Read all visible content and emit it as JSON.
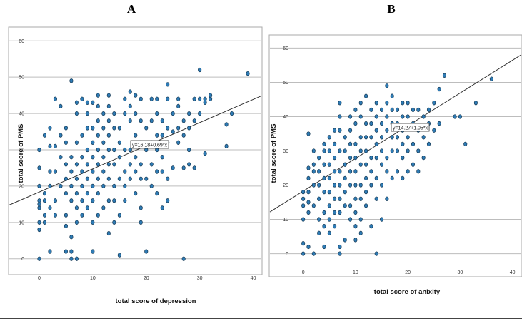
{
  "panels": [
    {
      "letter": "A"
    },
    {
      "letter": "B"
    }
  ],
  "chart_data": [
    {
      "type": "scatter",
      "title": "",
      "xlabel": "total score of depression",
      "ylabel": "total score of PMS",
      "xlim": [
        -2,
        41
      ],
      "ylim": [
        -3,
        63
      ],
      "xticks": [
        0,
        10,
        20,
        30,
        40
      ],
      "yticks": [
        0,
        10,
        20,
        30,
        40,
        50,
        60
      ],
      "grid": "horizontal",
      "fit_line": {
        "intercept": 16.18,
        "slope": 0.69,
        "label": "y=16.18+0.69*x"
      },
      "points": [
        [
          0,
          0
        ],
        [
          0,
          8
        ],
        [
          0,
          10
        ],
        [
          0,
          14
        ],
        [
          0,
          15
        ],
        [
          0,
          16
        ],
        [
          0,
          20
        ],
        [
          0,
          25
        ],
        [
          0,
          30
        ],
        [
          1,
          10
        ],
        [
          1,
          12
        ],
        [
          1,
          16
        ],
        [
          1,
          18
        ],
        [
          1,
          34
        ],
        [
          2,
          2
        ],
        [
          2,
          14
        ],
        [
          2,
          20
        ],
        [
          2,
          24
        ],
        [
          2,
          31
        ],
        [
          2,
          36
        ],
        [
          3,
          12
        ],
        [
          3,
          16
        ],
        [
          3,
          24
        ],
        [
          3,
          31
        ],
        [
          3,
          44
        ],
        [
          4,
          20
        ],
        [
          4,
          28
        ],
        [
          4,
          34
        ],
        [
          4,
          42
        ],
        [
          5,
          2
        ],
        [
          5,
          9
        ],
        [
          5,
          12
        ],
        [
          5,
          18
        ],
        [
          5,
          22
        ],
        [
          5,
          26
        ],
        [
          5,
          32
        ],
        [
          5,
          36
        ],
        [
          6,
          0
        ],
        [
          6,
          2
        ],
        [
          6,
          6
        ],
        [
          6,
          16
        ],
        [
          6,
          20
        ],
        [
          6,
          24
        ],
        [
          6,
          28
        ],
        [
          6,
          49
        ],
        [
          7,
          0
        ],
        [
          7,
          10
        ],
        [
          7,
          14
        ],
        [
          7,
          18
        ],
        [
          7,
          22
        ],
        [
          7,
          26
        ],
        [
          7,
          32
        ],
        [
          7,
          40
        ],
        [
          7,
          43
        ],
        [
          8,
          12
        ],
        [
          8,
          16
        ],
        [
          8,
          20
        ],
        [
          8,
          24
        ],
        [
          8,
          28
        ],
        [
          8,
          34
        ],
        [
          8,
          44
        ],
        [
          9,
          14
        ],
        [
          9,
          18
        ],
        [
          9,
          22
        ],
        [
          9,
          26
        ],
        [
          9,
          30
        ],
        [
          9,
          36
        ],
        [
          9,
          40
        ],
        [
          9,
          43
        ],
        [
          10,
          2
        ],
        [
          10,
          10
        ],
        [
          10,
          16
        ],
        [
          10,
          20
        ],
        [
          10,
          24
        ],
        [
          10,
          28
        ],
        [
          10,
          32
        ],
        [
          10,
          36
        ],
        [
          10,
          43
        ],
        [
          11,
          12
        ],
        [
          11,
          18
        ],
        [
          11,
          22
        ],
        [
          11,
          26
        ],
        [
          11,
          30
        ],
        [
          11,
          34
        ],
        [
          11,
          38
        ],
        [
          11,
          42
        ],
        [
          11,
          45
        ],
        [
          12,
          14
        ],
        [
          12,
          20
        ],
        [
          12,
          24
        ],
        [
          12,
          28
        ],
        [
          12,
          32
        ],
        [
          12,
          36
        ],
        [
          12,
          40
        ],
        [
          13,
          7
        ],
        [
          13,
          16
        ],
        [
          13,
          22
        ],
        [
          13,
          26
        ],
        [
          13,
          30
        ],
        [
          13,
          34
        ],
        [
          13,
          38
        ],
        [
          13,
          42
        ],
        [
          13,
          45
        ],
        [
          14,
          10
        ],
        [
          14,
          16
        ],
        [
          14,
          20
        ],
        [
          14,
          26
        ],
        [
          14,
          30
        ],
        [
          14,
          36
        ],
        [
          14,
          40
        ],
        [
          15,
          1
        ],
        [
          15,
          12
        ],
        [
          15,
          22
        ],
        [
          15,
          28
        ],
        [
          15,
          32
        ],
        [
          15,
          36
        ],
        [
          16,
          16
        ],
        [
          16,
          20
        ],
        [
          16,
          24
        ],
        [
          16,
          30
        ],
        [
          16,
          40
        ],
        [
          16,
          44
        ],
        [
          17,
          22
        ],
        [
          17,
          26
        ],
        [
          17,
          30
        ],
        [
          17,
          38
        ],
        [
          17,
          42
        ],
        [
          17,
          46
        ],
        [
          18,
          18
        ],
        [
          18,
          24
        ],
        [
          18,
          28
        ],
        [
          18,
          34
        ],
        [
          18,
          40
        ],
        [
          18,
          45
        ],
        [
          19,
          10
        ],
        [
          19,
          14
        ],
        [
          19,
          22
        ],
        [
          19,
          26
        ],
        [
          19,
          32
        ],
        [
          19,
          38
        ],
        [
          19,
          44
        ],
        [
          20,
          2
        ],
        [
          20,
          22
        ],
        [
          20,
          30
        ],
        [
          20,
          36
        ],
        [
          21,
          20
        ],
        [
          21,
          26
        ],
        [
          21,
          32
        ],
        [
          21,
          38
        ],
        [
          21,
          44
        ],
        [
          22,
          18
        ],
        [
          22,
          24
        ],
        [
          22,
          30
        ],
        [
          22,
          34
        ],
        [
          22,
          40
        ],
        [
          22,
          44
        ],
        [
          23,
          14
        ],
        [
          23,
          24
        ],
        [
          23,
          28
        ],
        [
          23,
          34
        ],
        [
          23,
          38
        ],
        [
          24,
          16
        ],
        [
          24,
          22
        ],
        [
          24,
          32
        ],
        [
          24,
          36
        ],
        [
          24,
          44
        ],
        [
          24,
          48
        ],
        [
          25,
          25
        ],
        [
          25,
          35
        ],
        [
          25,
          40
        ],
        [
          26,
          32
        ],
        [
          26,
          36
        ],
        [
          26,
          42
        ],
        [
          26,
          44
        ],
        [
          27,
          0
        ],
        [
          27,
          25
        ],
        [
          27,
          34
        ],
        [
          27,
          38
        ],
        [
          28,
          26
        ],
        [
          28,
          30
        ],
        [
          28,
          36
        ],
        [
          28,
          40
        ],
        [
          29,
          25
        ],
        [
          29,
          38
        ],
        [
          29,
          44
        ],
        [
          30,
          40
        ],
        [
          30,
          44
        ],
        [
          30,
          52
        ],
        [
          31,
          29
        ],
        [
          31,
          43
        ],
        [
          31,
          44
        ],
        [
          32,
          44
        ],
        [
          32,
          45
        ],
        [
          35,
          31
        ],
        [
          35,
          37
        ],
        [
          36,
          40
        ],
        [
          39,
          51
        ]
      ]
    },
    {
      "type": "scatter",
      "title": "",
      "xlabel": "total score of anixity",
      "ylabel": "total score of PMS",
      "xlim": [
        -2,
        41
      ],
      "ylim": [
        -3,
        63
      ],
      "xticks": [
        0,
        10,
        20,
        30,
        40
      ],
      "yticks": [
        0,
        10,
        20,
        30,
        40,
        50,
        60
      ],
      "grid": "horizontal",
      "fit_line": {
        "intercept": 14.27,
        "slope": 1.05,
        "label": "y=14.27+1.05*x"
      },
      "points": [
        [
          0,
          0
        ],
        [
          0,
          3
        ],
        [
          0,
          10
        ],
        [
          0,
          14
        ],
        [
          0,
          16
        ],
        [
          0,
          18
        ],
        [
          1,
          2
        ],
        [
          1,
          12
        ],
        [
          1,
          15
        ],
        [
          1,
          18
        ],
        [
          1,
          22
        ],
        [
          1,
          25
        ],
        [
          1,
          35
        ],
        [
          2,
          0
        ],
        [
          2,
          14
        ],
        [
          2,
          20
        ],
        [
          2,
          24
        ],
        [
          2,
          26
        ],
        [
          2,
          30
        ],
        [
          3,
          6
        ],
        [
          3,
          10
        ],
        [
          3,
          16
        ],
        [
          3,
          20
        ],
        [
          3,
          24
        ],
        [
          3,
          28
        ],
        [
          4,
          2
        ],
        [
          4,
          8
        ],
        [
          4,
          12
        ],
        [
          4,
          18
        ],
        [
          4,
          22
        ],
        [
          4,
          26
        ],
        [
          4,
          30
        ],
        [
          4,
          32
        ],
        [
          5,
          6
        ],
        [
          5,
          10
        ],
        [
          5,
          14
        ],
        [
          5,
          18
        ],
        [
          5,
          22
        ],
        [
          5,
          26
        ],
        [
          5,
          30
        ],
        [
          5,
          34
        ],
        [
          6,
          8
        ],
        [
          6,
          12
        ],
        [
          6,
          16
        ],
        [
          6,
          20
        ],
        [
          6,
          24
        ],
        [
          6,
          28
        ],
        [
          6,
          32
        ],
        [
          6,
          36
        ],
        [
          7,
          0
        ],
        [
          7,
          2
        ],
        [
          7,
          12
        ],
        [
          7,
          16
        ],
        [
          7,
          20
        ],
        [
          7,
          24
        ],
        [
          7,
          30
        ],
        [
          7,
          36
        ],
        [
          7,
          40
        ],
        [
          7,
          44
        ],
        [
          8,
          4
        ],
        [
          8,
          14
        ],
        [
          8,
          18
        ],
        [
          8,
          22
        ],
        [
          8,
          26
        ],
        [
          8,
          30
        ],
        [
          8,
          34
        ],
        [
          9,
          10
        ],
        [
          9,
          14
        ],
        [
          9,
          20
        ],
        [
          9,
          24
        ],
        [
          9,
          28
        ],
        [
          9,
          32
        ],
        [
          9,
          36
        ],
        [
          9,
          40
        ],
        [
          10,
          4
        ],
        [
          10,
          8
        ],
        [
          10,
          12
        ],
        [
          10,
          16
        ],
        [
          10,
          20
        ],
        [
          10,
          24
        ],
        [
          10,
          28
        ],
        [
          10,
          32
        ],
        [
          10,
          38
        ],
        [
          10,
          42
        ],
        [
          11,
          6
        ],
        [
          11,
          10
        ],
        [
          11,
          16
        ],
        [
          11,
          20
        ],
        [
          11,
          26
        ],
        [
          11,
          30
        ],
        [
          11,
          34
        ],
        [
          11,
          40
        ],
        [
          11,
          44
        ],
        [
          12,
          14
        ],
        [
          12,
          18
        ],
        [
          12,
          22
        ],
        [
          12,
          26
        ],
        [
          12,
          30
        ],
        [
          12,
          34
        ],
        [
          12,
          38
        ],
        [
          12,
          46
        ],
        [
          13,
          8
        ],
        [
          13,
          20
        ],
        [
          13,
          24
        ],
        [
          13,
          28
        ],
        [
          13,
          34
        ],
        [
          13,
          38
        ],
        [
          13,
          42
        ],
        [
          14,
          0
        ],
        [
          14,
          16
        ],
        [
          14,
          22
        ],
        [
          14,
          28
        ],
        [
          14,
          32
        ],
        [
          14,
          36
        ],
        [
          14,
          40
        ],
        [
          14,
          44
        ],
        [
          15,
          10
        ],
        [
          15,
          20
        ],
        [
          15,
          26
        ],
        [
          15,
          30
        ],
        [
          15,
          34
        ],
        [
          15,
          38
        ],
        [
          15,
          42
        ],
        [
          16,
          16
        ],
        [
          16,
          24
        ],
        [
          16,
          28
        ],
        [
          16,
          36
        ],
        [
          16,
          40
        ],
        [
          16,
          44
        ],
        [
          16,
          49
        ],
        [
          17,
          22
        ],
        [
          17,
          30
        ],
        [
          17,
          34
        ],
        [
          17,
          38
        ],
        [
          17,
          42
        ],
        [
          17,
          46
        ],
        [
          18,
          24
        ],
        [
          18,
          30
        ],
        [
          18,
          34
        ],
        [
          18,
          38
        ],
        [
          18,
          42
        ],
        [
          19,
          22
        ],
        [
          19,
          28
        ],
        [
          19,
          32
        ],
        [
          19,
          36
        ],
        [
          19,
          40
        ],
        [
          19,
          44
        ],
        [
          20,
          24
        ],
        [
          20,
          30
        ],
        [
          20,
          34
        ],
        [
          20,
          40
        ],
        [
          20,
          44
        ],
        [
          21,
          26
        ],
        [
          21,
          32
        ],
        [
          21,
          38
        ],
        [
          21,
          42
        ],
        [
          22,
          24
        ],
        [
          22,
          30
        ],
        [
          22,
          36
        ],
        [
          22,
          42
        ],
        [
          23,
          28
        ],
        [
          23,
          34
        ],
        [
          23,
          40
        ],
        [
          24,
          32
        ],
        [
          24,
          38
        ],
        [
          24,
          42
        ],
        [
          25,
          36
        ],
        [
          25,
          44
        ],
        [
          26,
          48
        ],
        [
          26,
          38
        ],
        [
          27,
          52
        ],
        [
          29,
          40
        ],
        [
          30,
          40
        ],
        [
          31,
          32
        ],
        [
          33,
          44
        ],
        [
          36,
          51
        ]
      ]
    }
  ]
}
